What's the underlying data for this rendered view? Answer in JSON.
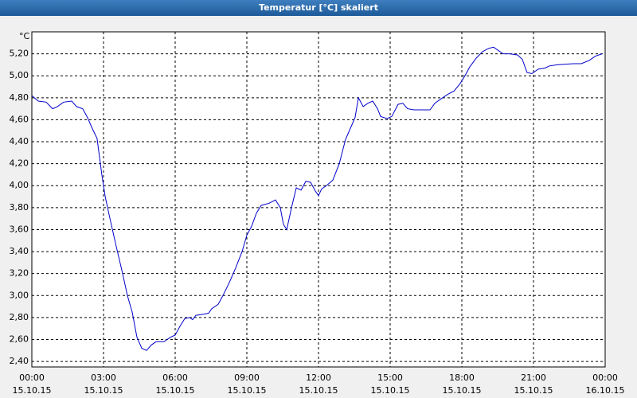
{
  "chart_data": {
    "type": "line",
    "title": "Temperatur [°C] skaliert",
    "y_unit": "°C",
    "xlim": [
      0,
      24
    ],
    "xticks": [
      {
        "value": 0,
        "label": "00:00",
        "date": "15.10.15"
      },
      {
        "value": 3,
        "label": "03:00",
        "date": "15.10.15"
      },
      {
        "value": 6,
        "label": "06:00",
        "date": "15.10.15"
      },
      {
        "value": 9,
        "label": "09:00",
        "date": "15.10.15"
      },
      {
        "value": 12,
        "label": "12:00",
        "date": "15.10.15"
      },
      {
        "value": 15,
        "label": "15:00",
        "date": "15.10.15"
      },
      {
        "value": 18,
        "label": "18:00",
        "date": "15.10.15"
      },
      {
        "value": 21,
        "label": "21:00",
        "date": "15.10.15"
      },
      {
        "value": 24,
        "label": "00:00",
        "date": "16.10.15"
      }
    ],
    "ylim": [
      2.35,
      5.4
    ],
    "yticks": [
      {
        "value": 2.4,
        "label": "2,40"
      },
      {
        "value": 2.6,
        "label": "2,60"
      },
      {
        "value": 2.8,
        "label": "2,80"
      },
      {
        "value": 3.0,
        "label": "3,00"
      },
      {
        "value": 3.2,
        "label": "3,20"
      },
      {
        "value": 3.4,
        "label": "3,40"
      },
      {
        "value": 3.6,
        "label": "3,60"
      },
      {
        "value": 3.8,
        "label": "3,80"
      },
      {
        "value": 4.0,
        "label": "4,00"
      },
      {
        "value": 4.2,
        "label": "4,20"
      },
      {
        "value": 4.4,
        "label": "4,40"
      },
      {
        "value": 4.6,
        "label": "4,60"
      },
      {
        "value": 4.8,
        "label": "4,80"
      },
      {
        "value": 5.0,
        "label": "5,00"
      },
      {
        "value": 5.2,
        "label": "5,20"
      }
    ],
    "grid": true,
    "x": [
      0,
      0.27,
      0.6,
      0.87,
      1.07,
      1.33,
      1.67,
      1.87,
      2.13,
      2.33,
      2.53,
      2.73,
      2.93,
      3.07,
      3.27,
      3.53,
      3.8,
      4,
      4.2,
      4.4,
      4.6,
      4.8,
      5,
      5.2,
      5.53,
      5.8,
      6,
      6.2,
      6.4,
      6.6,
      6.73,
      6.87,
      7.2,
      7.4,
      7.53,
      7.8,
      8,
      8.27,
      8.53,
      8.8,
      9,
      9.2,
      9.4,
      9.6,
      9.93,
      10.2,
      10.4,
      10.53,
      10.67,
      10.87,
      11.07,
      11.27,
      11.47,
      11.67,
      11.87,
      12,
      12.13,
      12.33,
      12.6,
      12.87,
      13.13,
      13.33,
      13.53,
      13.67,
      13.87,
      14.07,
      14.27,
      14.47,
      14.6,
      14.87,
      15.07,
      15.33,
      15.53,
      15.73,
      16,
      16.67,
      16.87,
      17.13,
      17.4,
      17.67,
      17.93,
      18.13,
      18.33,
      18.6,
      18.87,
      19.13,
      19.33,
      19.73,
      20,
      20.33,
      20.53,
      20.73,
      20.93,
      21.2,
      21.47,
      21.67,
      22,
      22.67,
      23,
      23.33,
      23.6,
      23.87
    ],
    "series": [
      {
        "color": "#0000cc",
        "values": [
          4.82,
          4.77,
          4.76,
          4.7,
          4.72,
          4.76,
          4.77,
          4.72,
          4.7,
          4.62,
          4.52,
          4.43,
          4.1,
          3.9,
          3.7,
          3.45,
          3.2,
          3.0,
          2.85,
          2.62,
          2.52,
          2.5,
          2.55,
          2.58,
          2.58,
          2.62,
          2.64,
          2.72,
          2.79,
          2.8,
          2.78,
          2.82,
          2.83,
          2.84,
          2.88,
          2.92,
          3.0,
          3.12,
          3.25,
          3.4,
          3.55,
          3.63,
          3.75,
          3.82,
          3.84,
          3.87,
          3.8,
          3.65,
          3.6,
          3.8,
          3.98,
          3.96,
          4.04,
          4.03,
          3.95,
          3.91,
          3.97,
          4.0,
          4.05,
          4.2,
          4.42,
          4.52,
          4.62,
          4.8,
          4.72,
          4.75,
          4.77,
          4.7,
          4.63,
          4.61,
          4.63,
          4.74,
          4.75,
          4.7,
          4.69,
          4.69,
          4.75,
          4.79,
          4.83,
          4.86,
          4.93,
          5.0,
          5.08,
          5.16,
          5.22,
          5.25,
          5.26,
          5.2,
          5.2,
          5.19,
          5.15,
          5.03,
          5.02,
          5.06,
          5.07,
          5.09,
          5.1,
          5.11,
          5.11,
          5.14,
          5.18,
          5.2
        ]
      }
    ]
  }
}
